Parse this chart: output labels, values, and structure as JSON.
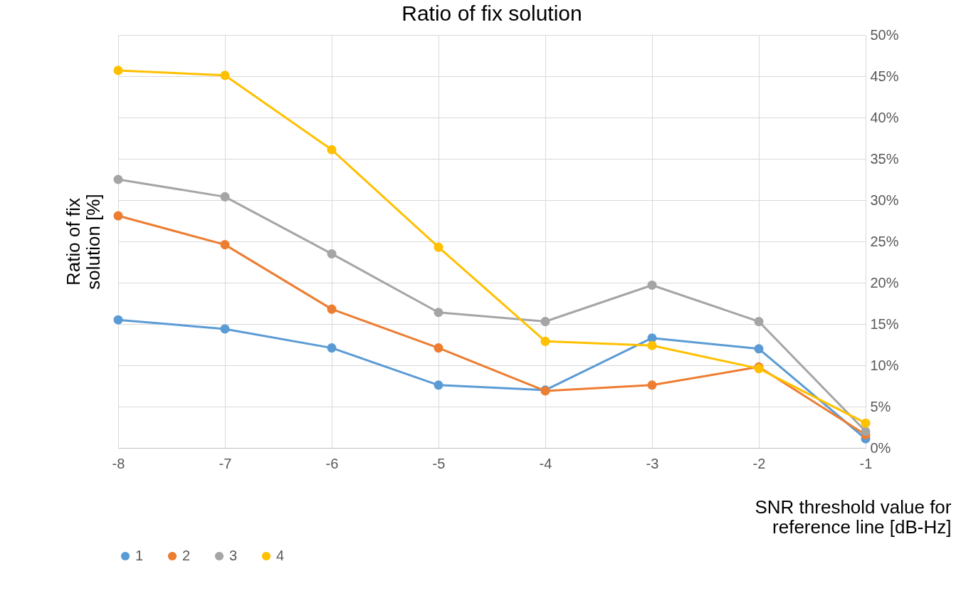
{
  "chart_data": {
    "type": "line",
    "title": "Ratio of fix solution",
    "xlabel": "SNR threshold value for reference line [dB-Hz]",
    "ylabel": "Ratio of fix solution [%]",
    "x": [
      -8,
      -7,
      -6,
      -5,
      -4,
      -3,
      -2,
      -1
    ],
    "series": [
      {
        "name": "1",
        "color": "#5b9bd5",
        "values": [
          15.5,
          14.4,
          12.1,
          7.6,
          7.0,
          13.3,
          12.0,
          1.1
        ]
      },
      {
        "name": "2",
        "color": "#ed7d31",
        "values": [
          28.1,
          24.6,
          16.8,
          12.1,
          6.9,
          7.6,
          9.8,
          1.6
        ]
      },
      {
        "name": "3",
        "color": "#a5a5a5",
        "values": [
          32.5,
          30.4,
          23.5,
          16.4,
          15.3,
          19.7,
          15.3,
          2.0
        ]
      },
      {
        "name": "4",
        "color": "#ffc000",
        "values": [
          45.7,
          45.1,
          36.1,
          24.3,
          12.9,
          12.4,
          9.6,
          3.0
        ]
      }
    ],
    "xlim": [
      -8,
      -1
    ],
    "xticks": [
      -8,
      -7,
      -6,
      -5,
      -4,
      -3,
      -2,
      -1
    ],
    "ylim": [
      0,
      50
    ],
    "yticks": [
      {
        "value": 0,
        "label": "0%"
      },
      {
        "value": 5,
        "label": "5%"
      },
      {
        "value": 10,
        "label": "10%"
      },
      {
        "value": 15,
        "label": "15%"
      },
      {
        "value": 20,
        "label": "20%"
      },
      {
        "value": 25,
        "label": "25%"
      },
      {
        "value": 30,
        "label": "30%"
      },
      {
        "value": 35,
        "label": "35%"
      },
      {
        "value": 40,
        "label": "40%"
      },
      {
        "value": 45,
        "label": "45%"
      },
      {
        "value": 50,
        "label": "50%"
      }
    ],
    "grid": true,
    "legend": "bottom",
    "marker": "circle",
    "line_style": "solid"
  }
}
